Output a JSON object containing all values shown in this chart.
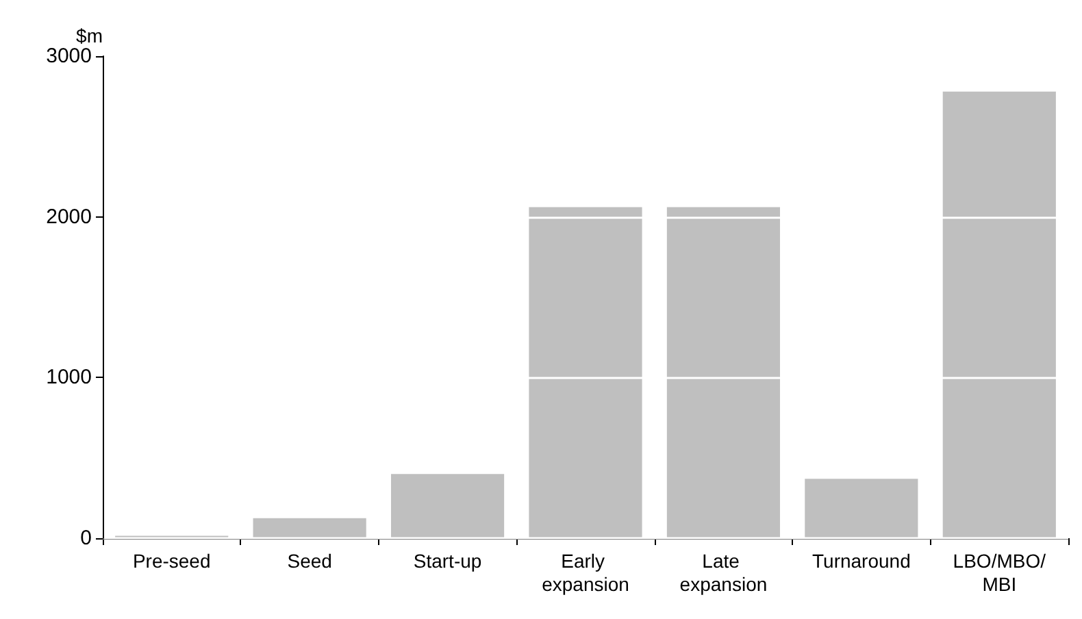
{
  "chart_data": {
    "type": "bar",
    "ylabel": "$m",
    "categories": [
      "Pre-seed",
      "Seed",
      "Start-up",
      "Early expansion",
      "Late expansion",
      "Turnaround",
      "LBO/MBO/MBI"
    ],
    "values": [
      15,
      125,
      400,
      2060,
      2060,
      370,
      2780
    ],
    "color": "#bfbfbf",
    "ylim": [
      0,
      3000
    ],
    "yticks": [
      0,
      1000,
      2000,
      3000
    ],
    "grid": "y"
  }
}
